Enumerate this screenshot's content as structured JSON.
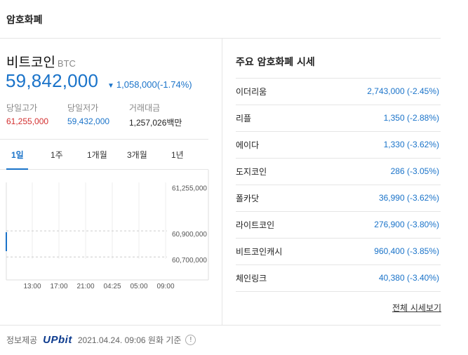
{
  "section": {
    "title": "암호화폐"
  },
  "coin": {
    "name": "비트코인",
    "symbol": "BTC",
    "price": "59,842,000",
    "change_arrow": "▼",
    "change": "1,058,000(-1.74%)",
    "stats": {
      "high_label": "당일고가",
      "high_value": "61,255,000",
      "low_label": "당일저가",
      "low_value": "59,432,000",
      "volume_label": "거래대금",
      "volume_value": "1,257,026백만"
    }
  },
  "period_tabs": [
    "1일",
    "1주",
    "1개월",
    "3개월",
    "1년"
  ],
  "active_tab": "1일",
  "chart_data": {
    "type": "line",
    "x_ticks": [
      "13:00",
      "17:00",
      "21:00",
      "04:25",
      "05:00",
      "09:00"
    ],
    "y_ticks": [
      "61,255,000",
      "60,900,000",
      "60,700,000"
    ],
    "ylim": [
      60550000,
      61300000
    ],
    "grid": true,
    "series": [
      {
        "x": [
          "13:00"
        ],
        "values": [
          60890000
        ]
      }
    ]
  },
  "market": {
    "title": "주요 암호화폐 시세",
    "items": [
      {
        "name": "이더리움",
        "value": "2,743,000 (-2.45%)"
      },
      {
        "name": "리플",
        "value": "1,350 (-2.88%)"
      },
      {
        "name": "에이다",
        "value": "1,330 (-3.62%)"
      },
      {
        "name": "도지코인",
        "value": "286 (-3.05%)"
      },
      {
        "name": "폴카닷",
        "value": "36,990 (-3.62%)"
      },
      {
        "name": "라이트코인",
        "value": "276,900 (-3.80%)"
      },
      {
        "name": "비트코인캐시",
        "value": "960,400 (-3.85%)"
      },
      {
        "name": "체인링크",
        "value": "40,380 (-3.40%)"
      }
    ],
    "view_all": "전체 시세보기"
  },
  "footer": {
    "source_label": "정보제공",
    "provider": "UPbit",
    "timestamp": "2021.04.24. 09:06 원화 기준",
    "info_icon": "!"
  },
  "colors": {
    "up": "#d32f2f",
    "down": "#1a73c9",
    "divider": "#e5e5e5"
  }
}
